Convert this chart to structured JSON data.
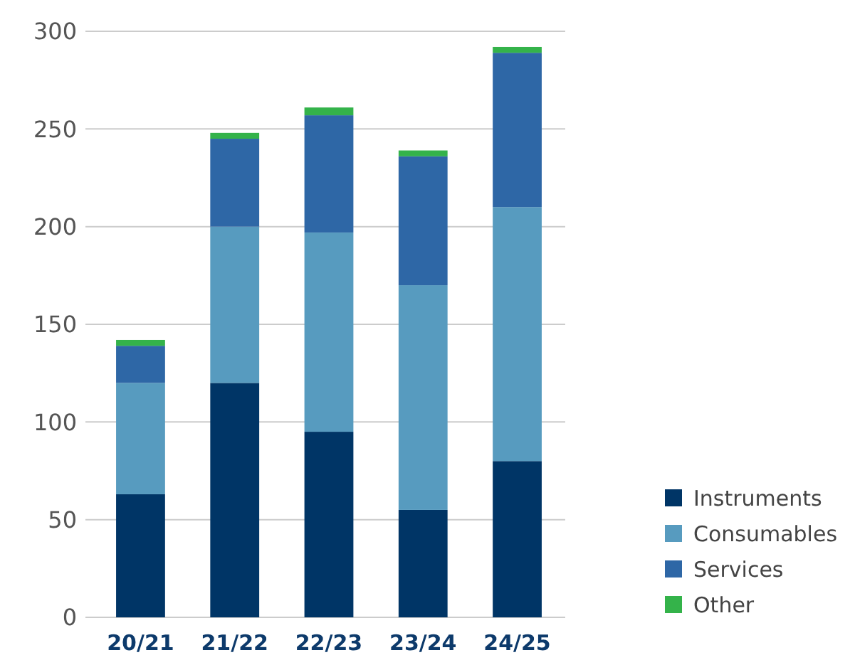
{
  "chart_data": {
    "type": "bar",
    "stacked": true,
    "categories": [
      "20/21",
      "21/22",
      "22/23",
      "23/24",
      "24/25"
    ],
    "series": [
      {
        "name": "Instruments",
        "color": "#003566",
        "values": [
          63,
          120,
          95,
          55,
          80
        ]
      },
      {
        "name": "Consumables",
        "color": "#579bbf",
        "values": [
          57,
          80,
          102,
          115,
          130
        ]
      },
      {
        "name": "Services",
        "color": "#2e67a6",
        "values": [
          19,
          45,
          60,
          66,
          79
        ]
      },
      {
        "name": "Other",
        "color": "#34b34a",
        "values": [
          3,
          3,
          4,
          3,
          3
        ]
      }
    ],
    "ylim": [
      0,
      300
    ],
    "yticks": [
      0,
      50,
      100,
      150,
      200,
      250,
      300
    ],
    "grid": "y",
    "legend": "bottom right"
  }
}
